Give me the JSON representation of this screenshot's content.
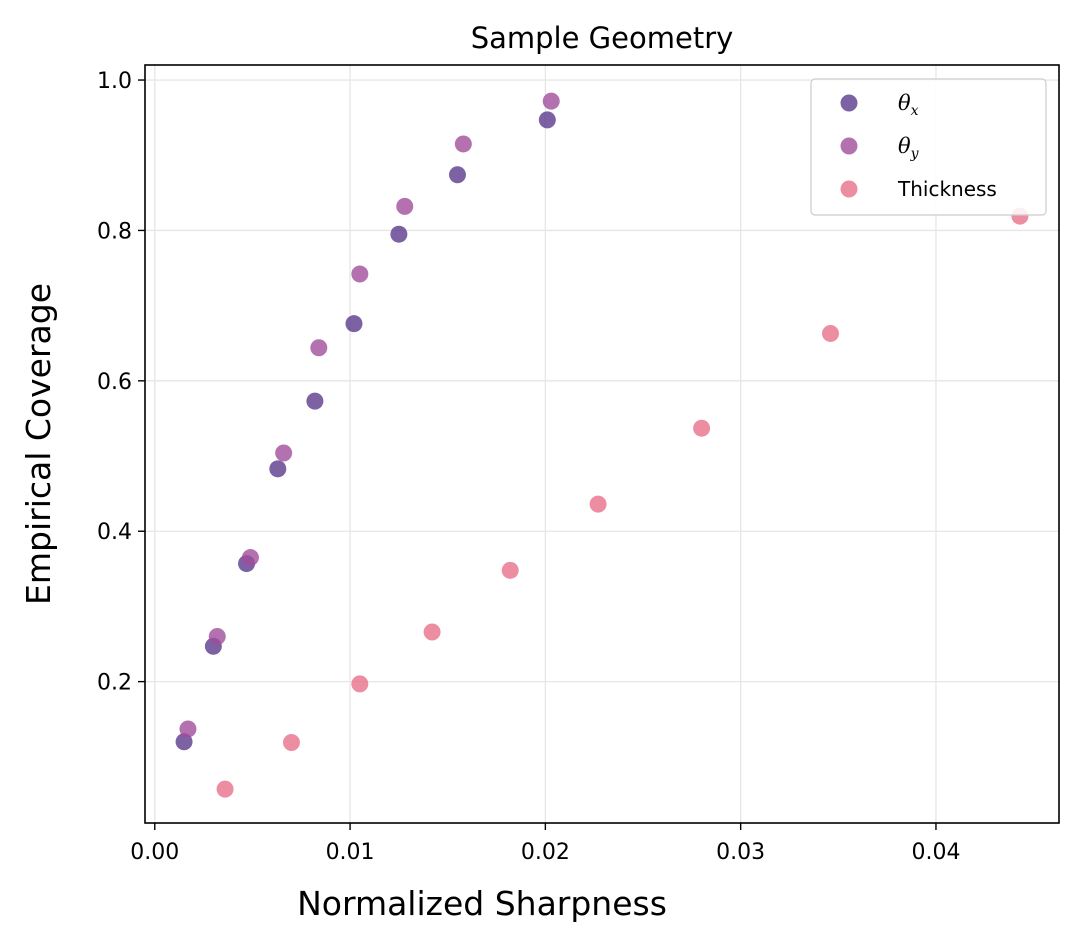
{
  "chart_data": {
    "type": "scatter",
    "title": "Sample Geometry",
    "xlabel": "Normalized Sharpness",
    "ylabel": "Empirical Coverage",
    "xlim": [
      -0.0005,
      0.0463
    ],
    "ylim": [
      0.012,
      1.02
    ],
    "xticks": [
      0.0,
      0.01,
      0.02,
      0.03,
      0.04
    ],
    "xtick_labels": [
      "0.00",
      "0.01",
      "0.02",
      "0.03",
      "0.04"
    ],
    "yticks": [
      0.2,
      0.4,
      0.6,
      0.8,
      1.0
    ],
    "ytick_labels": [
      "0.2",
      "0.4",
      "0.6",
      "0.8",
      "1.0"
    ],
    "grid": true,
    "legend_position": "top-right",
    "series": [
      {
        "name": "θx",
        "name_base": "θ",
        "name_sub": "x",
        "color": "#5b3b8c",
        "x": [
          0.0015,
          0.003,
          0.0047,
          0.0063,
          0.0082,
          0.0102,
          0.0125,
          0.0155,
          0.0201
        ],
        "y": [
          0.12,
          0.247,
          0.357,
          0.483,
          0.573,
          0.676,
          0.795,
          0.874,
          0.947
        ]
      },
      {
        "name": "θy",
        "name_base": "θ",
        "name_sub": "y",
        "color": "#a14d9b",
        "x": [
          0.0017,
          0.0032,
          0.0049,
          0.0066,
          0.0084,
          0.0105,
          0.0128,
          0.0158,
          0.0203
        ],
        "y": [
          0.137,
          0.26,
          0.365,
          0.504,
          0.644,
          0.742,
          0.832,
          0.915,
          0.972
        ]
      },
      {
        "name": "Thickness",
        "color": "#e8718a",
        "x": [
          0.0036,
          0.007,
          0.0105,
          0.0142,
          0.0182,
          0.0227,
          0.028,
          0.0346,
          0.0443
        ],
        "y": [
          0.057,
          0.119,
          0.197,
          0.266,
          0.348,
          0.436,
          0.537,
          0.663,
          0.819
        ]
      }
    ]
  }
}
